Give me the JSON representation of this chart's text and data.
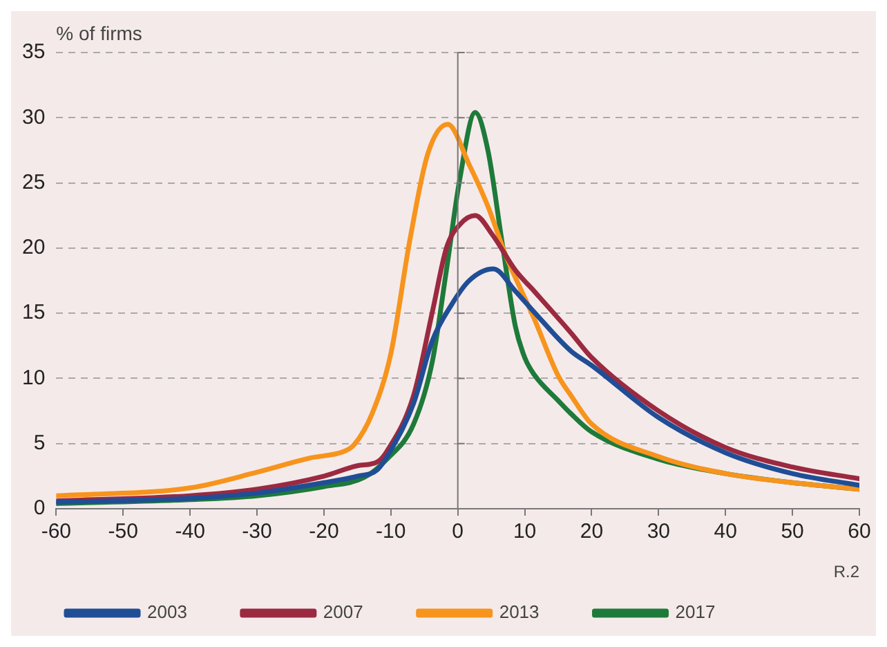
{
  "chart_data": {
    "type": "line",
    "ylabel": "% of firms",
    "annotations": [
      "R.2"
    ],
    "xlim": [
      -60,
      60
    ],
    "xticks": [
      -60,
      -50,
      -40,
      -30,
      -20,
      -10,
      0,
      10,
      20,
      30,
      40,
      50,
      60
    ],
    "ylim": [
      0,
      35
    ],
    "yticks": [
      0,
      5,
      10,
      15,
      20,
      25,
      30,
      35
    ],
    "grid": "y",
    "legend": "bottom",
    "marker": "none",
    "line_style": "solid",
    "series": [
      {
        "name": "2003",
        "color": "#1f4e96",
        "x": [
          -60,
          -40,
          -30,
          -20,
          -15,
          -12,
          -10,
          -6.6,
          -3.8,
          -1,
          1.7,
          5.3,
          8.6,
          10,
          11.4,
          16.9,
          20,
          30,
          40,
          50,
          60
        ],
        "values": [
          0.5,
          0.8,
          1.2,
          2.0,
          2.5,
          3.0,
          4.5,
          8.1,
          12.9,
          15.6,
          17.5,
          18.4,
          16.7,
          15.9,
          15.1,
          12.1,
          11.0,
          7.0,
          4.3,
          2.7,
          1.8
        ]
      },
      {
        "name": "2007",
        "color": "#9b2a40",
        "x": [
          -60,
          -40,
          -30,
          -20,
          -15,
          -12,
          -10.6,
          -6.6,
          -3.8,
          -1.7,
          0.3,
          2.6,
          5.2,
          8.6,
          11.4,
          16.9,
          20,
          30,
          40,
          50,
          60
        ],
        "values": [
          0.6,
          1.0,
          1.5,
          2.5,
          3.3,
          3.6,
          4.4,
          8.7,
          15.1,
          20.0,
          21.8,
          22.5,
          21.0,
          18.3,
          16.7,
          13.5,
          11.6,
          7.5,
          4.7,
          3.2,
          2.3
        ]
      },
      {
        "name": "2013",
        "color": "#f7941d",
        "x": [
          -60,
          -40,
          -30,
          -22,
          -17,
          -15.5,
          -12.8,
          -10,
          -7.2,
          -4.5,
          -1.5,
          1.7,
          4.5,
          7.2,
          11.4,
          15,
          16.9,
          20,
          30,
          40,
          50,
          60
        ],
        "values": [
          1.0,
          1.6,
          2.8,
          3.9,
          4.4,
          4.9,
          7.3,
          11.9,
          20.5,
          27.2,
          29.5,
          26.4,
          23.2,
          19.4,
          14.6,
          10.2,
          8.7,
          6.5,
          4.0,
          2.7,
          2.0,
          1.5
        ]
      },
      {
        "name": "2017",
        "color": "#1e7a3a",
        "x": [
          -60,
          -40,
          -30,
          -20,
          -14,
          -10.6,
          -6.6,
          -3.8,
          -1.7,
          0.3,
          2.6,
          4.5,
          6.6,
          8.6,
          10,
          11.4,
          15,
          16.9,
          20,
          30,
          40,
          50,
          60
        ],
        "values": [
          0.4,
          0.7,
          1.0,
          1.7,
          2.4,
          3.8,
          6.5,
          11.3,
          18.3,
          25.3,
          30.4,
          27.5,
          20.5,
          14.0,
          11.6,
          10.3,
          8.3,
          7.3,
          5.9,
          3.8,
          2.7,
          2.0,
          1.5
        ]
      }
    ]
  }
}
